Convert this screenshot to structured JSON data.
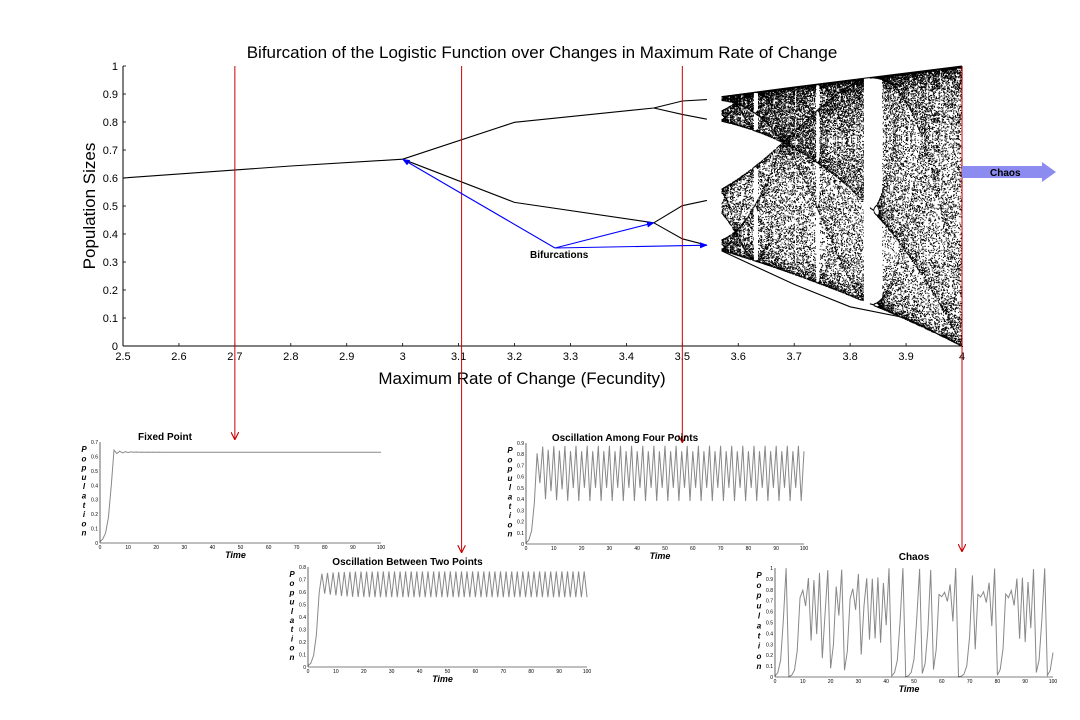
{
  "chart_data": [
    {
      "type": "scatter",
      "title": "Bifurcation of the Logistic Function over Changes in Maximum Rate of Change",
      "xlabel": "Maximum Rate of Change (Fecundity)",
      "ylabel": "Population Sizes",
      "xlim": [
        2.5,
        4
      ],
      "ylim": [
        0,
        1
      ],
      "xticks": [
        "2.5",
        "2.6",
        "2.7",
        "2.8",
        "2.9",
        "3",
        "3.1",
        "3.2",
        "3.3",
        "3.4",
        "3.5",
        "3.6",
        "3.7",
        "3.8",
        "3.9",
        "4"
      ],
      "yticks": [
        "0",
        "0.1",
        "0.2",
        "0.3",
        "0.4",
        "0.5",
        "0.6",
        "0.7",
        "0.8",
        "0.9",
        "1"
      ],
      "series": [
        {
          "x": [
            2.5,
            2.8,
            3.0
          ],
          "y": [
            0.6,
            0.643,
            0.667
          ]
        },
        {
          "x": [
            3.0,
            3.2,
            3.449
          ],
          "y": [
            0.667,
            0.799,
            0.85
          ]
        },
        {
          "x": [
            3.0,
            3.2,
            3.449
          ],
          "y": [
            0.667,
            0.513,
            0.44
          ]
        },
        {
          "x": [
            3.449,
            3.5,
            3.544
          ],
          "y": [
            0.85,
            0.875,
            0.88
          ]
        },
        {
          "x": [
            3.449,
            3.5,
            3.544
          ],
          "y": [
            0.85,
            0.827,
            0.81
          ]
        },
        {
          "x": [
            3.449,
            3.5,
            3.544
          ],
          "y": [
            0.44,
            0.501,
            0.52
          ]
        },
        {
          "x": [
            3.449,
            3.5,
            3.544
          ],
          "y": [
            0.44,
            0.383,
            0.36
          ]
        },
        {
          "x": [
            3.57,
            3.7,
            3.8,
            3.9,
            4.0
          ],
          "y": [
            0.34,
            0.22,
            0.14,
            0.1,
            0.0
          ]
        },
        {
          "x": [
            3.57,
            3.7,
            3.8,
            3.9,
            4.0
          ],
          "y": [
            0.89,
            0.925,
            0.95,
            0.975,
            1.0
          ]
        }
      ],
      "chaos_onset": 3.57,
      "window_period3": 3.83,
      "annotations": [
        {
          "text": "Bifurcations",
          "arrows_to": [
            [
              3.0,
              0.667
            ],
            [
              3.449,
              0.44
            ],
            [
              3.544,
              0.36
            ]
          ]
        },
        {
          "text": "Chaos"
        }
      ],
      "annotation_color": "#0000ff",
      "chaos_arrow_color": "#8c8cf0",
      "guide_line_color": "#cc0000",
      "guide_lines_at": [
        2.7,
        3.1,
        3.5,
        4.0
      ],
      "grid": false
    },
    {
      "type": "line",
      "title": "Fixed Point",
      "xlabel": "Time",
      "ylabel": "Population",
      "xlim": [
        0,
        100
      ],
      "ylim": [
        0,
        0.7
      ],
      "xticks": [
        "0",
        "10",
        "20",
        "30",
        "40",
        "50",
        "60",
        "70",
        "80",
        "90",
        "100"
      ],
      "yticks": [
        "0",
        "0.1",
        "0.2",
        "0.3",
        "0.4",
        "0.5",
        "0.6",
        "0.7"
      ],
      "rate": 2.7,
      "x0": 0.01,
      "steps": 100,
      "x": [
        0,
        1,
        2,
        3,
        4,
        5,
        6,
        7,
        8,
        100
      ],
      "values": [
        0.01,
        0.027,
        0.071,
        0.178,
        0.395,
        0.645,
        0.619,
        0.637,
        0.625,
        0.63
      ],
      "line_color": "#888888"
    },
    {
      "type": "line",
      "title": "Oscillation Between Two Points",
      "xlabel": "Time",
      "ylabel": "Population",
      "xlim": [
        0,
        100
      ],
      "ylim": [
        0,
        0.8
      ],
      "xticks": [
        "0",
        "10",
        "20",
        "30",
        "40",
        "50",
        "60",
        "70",
        "80",
        "90",
        "100"
      ],
      "yticks": [
        "0",
        "0.1",
        "0.2",
        "0.3",
        "0.4",
        "0.5",
        "0.6",
        "0.7",
        "0.8"
      ],
      "rate": 3.1,
      "x0": 0.01,
      "steps": 100,
      "x": [
        0,
        1,
        2,
        3,
        4,
        5,
        6,
        7,
        8,
        100
      ],
      "values": [
        0.01,
        0.031,
        0.093,
        0.262,
        0.599,
        0.745,
        0.589,
        0.751,
        0.58,
        0.558
      ],
      "line_color": "#888888"
    },
    {
      "type": "line",
      "title": "Oscillation Among Four Points",
      "xlabel": "Time",
      "ylabel": "Population",
      "xlim": [
        0,
        100
      ],
      "ylim": [
        0,
        0.9
      ],
      "xticks": [
        "0",
        "10",
        "20",
        "30",
        "40",
        "50",
        "60",
        "70",
        "80",
        "90",
        "100"
      ],
      "yticks": [
        "0",
        "0.1",
        "0.2",
        "0.3",
        "0.4",
        "0.5",
        "0.6",
        "0.7",
        "0.8",
        "0.9"
      ],
      "rate": 3.5,
      "x0": 0.01,
      "steps": 100,
      "x": [
        0,
        1,
        2,
        3,
        4,
        5,
        6,
        7,
        8,
        100
      ],
      "values": [
        0.01,
        0.035,
        0.118,
        0.364,
        0.81,
        0.538,
        0.87,
        0.396,
        0.837,
        0.383
      ],
      "line_color": "#888888"
    },
    {
      "type": "line",
      "title": "Chaos",
      "xlabel": "Time",
      "ylabel": "Population",
      "xlim": [
        0,
        100
      ],
      "ylim": [
        0,
        1
      ],
      "xticks": [
        "0",
        "10",
        "20",
        "30",
        "40",
        "50",
        "60",
        "70",
        "80",
        "90",
        "100"
      ],
      "yticks": [
        "0",
        "0.1",
        "0.2",
        "0.3",
        "0.4",
        "0.5",
        "0.6",
        "0.7",
        "0.8",
        "0.9",
        "1"
      ],
      "rate": 4.0,
      "x0": 0.01,
      "steps": 100,
      "x": [
        0,
        1,
        2,
        3,
        4,
        5,
        6,
        7,
        8,
        100
      ],
      "values": [
        0.01,
        0.04,
        0.1,
        0.36,
        0.92,
        0.29,
        0.82,
        0.6,
        0.96,
        0.5
      ],
      "line_color": "#888888"
    }
  ]
}
